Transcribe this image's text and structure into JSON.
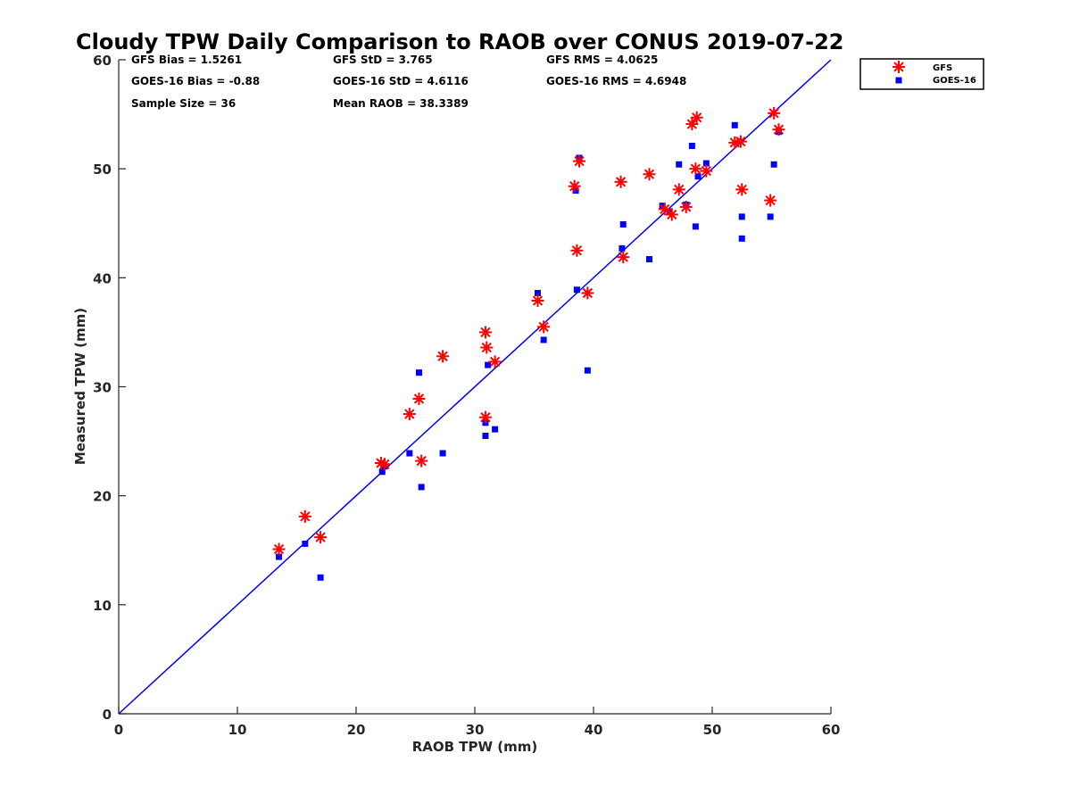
{
  "chart_data": {
    "type": "scatter",
    "title": "Cloudy TPW Daily Comparison to RAOB over CONUS 2019-07-22",
    "xlabel": "RAOB TPW (mm)",
    "ylabel": "Measured TPW (mm)",
    "xlim": [
      0,
      60
    ],
    "ylim": [
      0,
      60
    ],
    "xticks": [
      "0",
      "10",
      "20",
      "30",
      "40",
      "50",
      "60"
    ],
    "yticks": [
      "0",
      "10",
      "20",
      "30",
      "40",
      "50",
      "60"
    ],
    "grid": false,
    "legend_position": "outside-top-right",
    "reference_line": {
      "from": [
        0,
        0
      ],
      "to": [
        60,
        60
      ],
      "color": "#0000ff"
    },
    "stats": [
      "GFS Bias = 1.5261",
      "GFS StD = 3.765",
      "GFS RMS = 4.0625",
      "GOES-16 Bias = -0.88",
      "GOES-16 StD = 4.6116",
      "GOES-16 RMS = 4.6948",
      "Sample Size = 36",
      "Mean RAOB = 38.3389"
    ],
    "series": [
      {
        "name": "GFS",
        "marker": "asterisk",
        "color": "#ff0000",
        "points": [
          [
            13.5,
            15.1
          ],
          [
            15.7,
            18.1
          ],
          [
            17.0,
            16.2
          ],
          [
            22.1,
            23.0
          ],
          [
            22.4,
            22.9
          ],
          [
            24.5,
            27.5
          ],
          [
            25.3,
            28.9
          ],
          [
            25.5,
            23.2
          ],
          [
            27.3,
            32.8
          ],
          [
            30.9,
            35.0
          ],
          [
            31.0,
            33.6
          ],
          [
            31.7,
            32.3
          ],
          [
            30.9,
            27.2
          ],
          [
            35.3,
            37.9
          ],
          [
            35.8,
            35.5
          ],
          [
            38.4,
            48.4
          ],
          [
            38.6,
            42.5
          ],
          [
            38.8,
            50.7
          ],
          [
            39.5,
            38.6
          ],
          [
            42.3,
            48.8
          ],
          [
            42.5,
            41.9
          ],
          [
            44.7,
            49.5
          ],
          [
            46.0,
            46.3
          ],
          [
            46.6,
            45.8
          ],
          [
            47.2,
            48.1
          ],
          [
            47.8,
            46.5
          ],
          [
            48.3,
            54.1
          ],
          [
            48.7,
            54.7
          ],
          [
            48.6,
            50.0
          ],
          [
            49.5,
            49.8
          ],
          [
            51.9,
            52.4
          ],
          [
            52.4,
            52.5
          ],
          [
            52.5,
            48.1
          ],
          [
            54.9,
            47.1
          ],
          [
            55.2,
            55.1
          ],
          [
            55.6,
            53.6
          ]
        ]
      },
      {
        "name": "GOES-16",
        "marker": "square",
        "color": "#0000ff",
        "points": [
          [
            13.5,
            14.4
          ],
          [
            15.7,
            15.6
          ],
          [
            17.0,
            12.5
          ],
          [
            22.2,
            22.2
          ],
          [
            22.4,
            22.7
          ],
          [
            24.5,
            23.9
          ],
          [
            25.3,
            31.3
          ],
          [
            25.5,
            20.8
          ],
          [
            27.3,
            23.9
          ],
          [
            30.9,
            26.7
          ],
          [
            30.9,
            25.5
          ],
          [
            31.1,
            32.0
          ],
          [
            31.7,
            26.1
          ],
          [
            35.3,
            38.6
          ],
          [
            35.8,
            34.3
          ],
          [
            38.5,
            48.0
          ],
          [
            38.6,
            38.9
          ],
          [
            38.8,
            51.0
          ],
          [
            39.5,
            31.5
          ],
          [
            42.4,
            42.7
          ],
          [
            42.5,
            44.9
          ],
          [
            44.7,
            41.7
          ],
          [
            45.8,
            46.6
          ],
          [
            46.4,
            46.1
          ],
          [
            47.2,
            50.4
          ],
          [
            47.8,
            46.7
          ],
          [
            48.3,
            52.1
          ],
          [
            48.6,
            44.7
          ],
          [
            48.8,
            49.3
          ],
          [
            49.5,
            50.5
          ],
          [
            51.9,
            54.0
          ],
          [
            52.5,
            45.6
          ],
          [
            52.5,
            43.6
          ],
          [
            54.9,
            45.6
          ],
          [
            55.2,
            50.4
          ],
          [
            55.6,
            53.4
          ]
        ]
      }
    ]
  }
}
